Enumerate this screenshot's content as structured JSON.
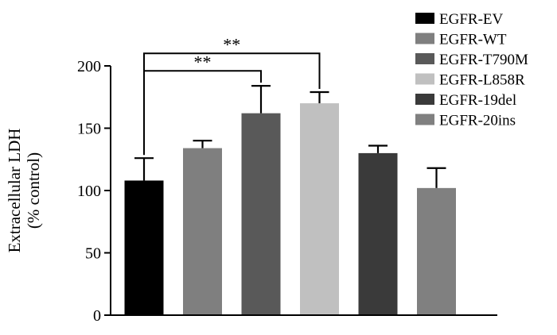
{
  "chart_data": {
    "type": "bar",
    "categories": [
      "EGFR-EV",
      "EGFR-WT",
      "EGFR-T790M",
      "EGFR-L858R",
      "EGFR-19del",
      "EGFR-20ins"
    ],
    "values": [
      108,
      134,
      162,
      170,
      130,
      102
    ],
    "errors": [
      18,
      6,
      22,
      9,
      6,
      16
    ],
    "colors": [
      "#000000",
      "#7f7f7f",
      "#595959",
      "#c0c0c0",
      "#3a3a3a",
      "#808080"
    ],
    "ylabel_line1": "Extracellular LDH",
    "ylabel_line2": "(% control)",
    "ylim": [
      0,
      200
    ],
    "yticks": [
      0,
      50,
      100,
      150,
      200
    ],
    "legend": {
      "placement": "top-right",
      "entries": [
        "EGFR-EV",
        "EGFR-WT",
        "EGFR-T790M",
        "EGFR-L858R",
        "EGFR-19del",
        "EGFR-20ins"
      ]
    },
    "annotations": [
      {
        "from": "EGFR-EV",
        "to": "EGFR-T790M",
        "label": "**",
        "level": 196
      },
      {
        "from": "EGFR-EV",
        "to": "EGFR-L858R",
        "label": "**",
        "level": 210
      }
    ],
    "grid": false
  }
}
